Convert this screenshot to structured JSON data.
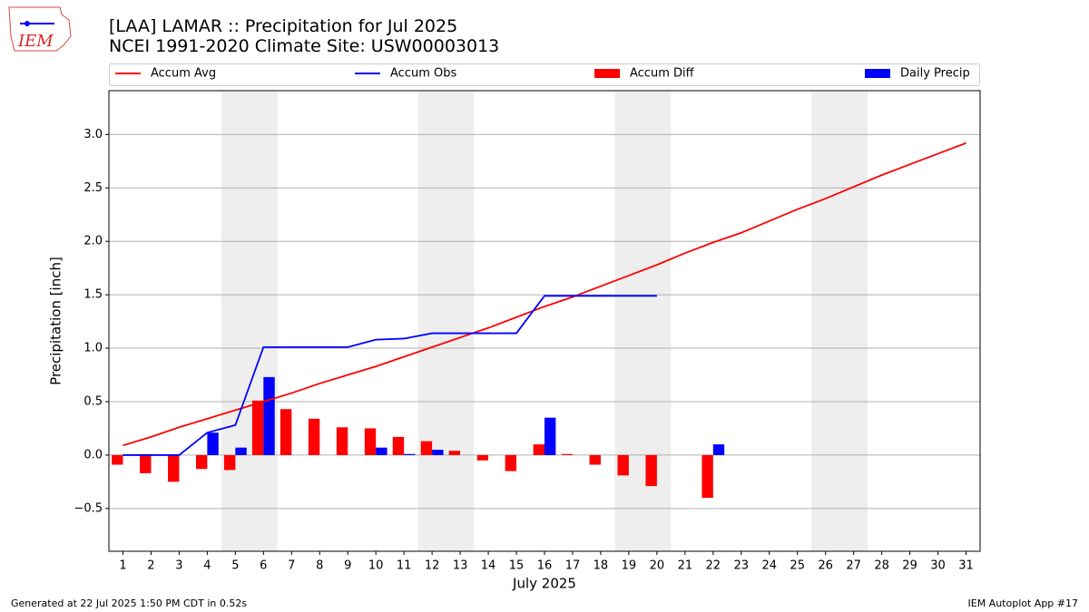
{
  "chart_data": {
    "type": "combo",
    "title": "[LAA] LAMAR :: Precipitation for Jul 2025",
    "subtitle": "NCEI 1991-2020 Climate Site: USW00003013",
    "logo_text": "IEM",
    "x_label": "July 2025",
    "y_label": "Precipitation [inch]",
    "footer_left": "Generated at 22 Jul 2025 1:50 PM CDT in 0.52s",
    "footer_right": "IEM Autoplot App #17",
    "x": [
      1,
      2,
      3,
      4,
      5,
      6,
      7,
      8,
      9,
      10,
      11,
      12,
      13,
      14,
      15,
      16,
      17,
      18,
      19,
      20,
      21,
      22,
      23,
      24,
      25,
      26,
      27,
      28,
      29,
      30,
      31
    ],
    "xlim": [
      0.5,
      31.5
    ],
    "xticks": [
      1,
      2,
      3,
      4,
      5,
      6,
      7,
      8,
      9,
      10,
      11,
      12,
      13,
      14,
      15,
      16,
      17,
      18,
      19,
      20,
      21,
      22,
      23,
      24,
      25,
      26,
      27,
      28,
      29,
      30,
      31
    ],
    "ylim": [
      -0.9,
      3.41
    ],
    "yticks": [
      {
        "value": -0.5,
        "label": "−0.5"
      },
      {
        "value": 0,
        "label": "0.0"
      },
      {
        "value": 0.5,
        "label": "0.5"
      },
      {
        "value": 1,
        "label": "1.0"
      },
      {
        "value": 1.5,
        "label": "1.5"
      },
      {
        "value": 2,
        "label": "2.0"
      },
      {
        "value": 2.5,
        "label": "2.5"
      },
      {
        "value": 3,
        "label": "3.0"
      }
    ],
    "grid": true,
    "shaded_spans": [
      [
        4.5,
        6.5
      ],
      [
        11.5,
        13.5
      ],
      [
        18.5,
        20.5
      ],
      [
        25.5,
        27.5
      ]
    ],
    "shade_color": "#eeeeee",
    "legend": "upper center",
    "series": [
      {
        "name": "Accum Avg",
        "type": "line",
        "color": "#ff0000",
        "values": [
          0.09,
          0.17,
          0.26,
          0.34,
          0.42,
          0.5,
          0.58,
          0.67,
          0.75,
          0.83,
          0.92,
          1.01,
          1.1,
          1.19,
          1.29,
          1.39,
          1.48,
          1.58,
          1.68,
          1.78,
          1.89,
          1.99,
          2.08,
          2.19,
          2.3,
          2.4,
          2.51,
          2.62,
          2.72,
          2.82,
          2.92
        ]
      },
      {
        "name": "Accum Obs",
        "type": "line",
        "color": "#0000ff",
        "values": [
          0,
          0,
          0,
          0.21,
          0.28,
          1.01,
          1.01,
          1.01,
          1.01,
          1.08,
          1.09,
          1.14,
          1.14,
          1.14,
          1.14,
          1.49,
          1.49,
          1.49,
          1.49,
          1.49,
          null,
          null,
          null,
          null,
          null,
          null,
          null,
          null,
          null,
          null,
          null
        ]
      },
      {
        "name": "Accum Diff",
        "type": "bar",
        "color": "#ff0000",
        "values": [
          -0.09,
          -0.17,
          -0.25,
          -0.13,
          -0.14,
          0.51,
          0.43,
          0.34,
          0.26,
          0.25,
          0.17,
          0.13,
          0.04,
          -0.05,
          -0.15,
          0.1,
          0.01,
          -0.09,
          -0.19,
          -0.29,
          null,
          -0.4,
          null,
          null,
          null,
          null,
          null,
          null,
          null,
          null,
          null
        ]
      },
      {
        "name": "Daily Precip",
        "type": "bar",
        "color": "#0000ff",
        "values": [
          0,
          0,
          0,
          0.21,
          0.07,
          0.73,
          0,
          0,
          0,
          0.07,
          0.01,
          0.05,
          0,
          0,
          0,
          0.35,
          0,
          0,
          0,
          0,
          0,
          0.1,
          null,
          null,
          null,
          null,
          null,
          null,
          null,
          null,
          null
        ]
      }
    ]
  }
}
